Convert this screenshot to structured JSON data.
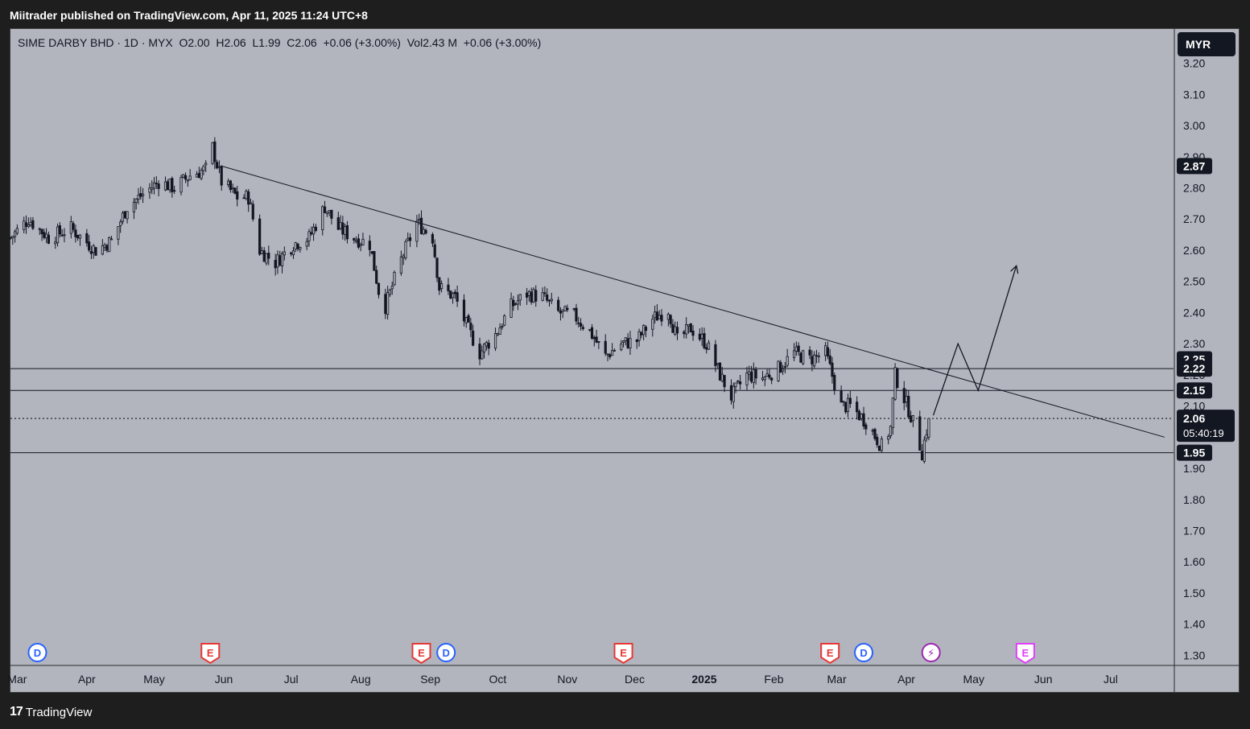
{
  "header": {
    "publisher_line": "Miitrader published on TradingView.com, Apr 11, 2025 11:24 UTC+8"
  },
  "legend": {
    "text": "SIME DARBY BHD · 1D · MYX  O2.00  H2.06  L1.99  C2.06  +0.06 (+3.00%)  Vol2.43 M  +0.06 (+3.00%)"
  },
  "currency_button": "MYR",
  "footer": {
    "logo_text": "TradingView",
    "logo_mark": "17"
  },
  "colors": {
    "chart_bg": "#b2b5be",
    "frame_bg": "#1e1e1e",
    "candle": "#131722",
    "label_bg": "#131722",
    "event_red": "#e53935",
    "event_blue": "#2962ff",
    "event_purple": "#9c27b0",
    "event_pink": "#e040fb"
  },
  "chart_data": {
    "type": "candlestick",
    "symbol": "SIME DARBY BHD",
    "interval": "1D",
    "exchange": "MYX",
    "currency": "MYR",
    "last": {
      "open": 2.0,
      "high": 2.06,
      "low": 1.99,
      "close": 2.06,
      "change": "+0.06 (+3.00%)",
      "volume": "2.43 M"
    },
    "y_ticks": [
      3.2,
      3.1,
      3.0,
      2.9,
      2.8,
      2.7,
      2.6,
      2.5,
      2.4,
      2.3,
      2.2,
      2.1,
      2.0,
      1.9,
      1.8,
      1.7,
      1.6,
      1.5,
      1.4,
      1.3
    ],
    "y_tick_labels": [
      "3.20",
      "3.10",
      "3.00",
      "2.90",
      "2.80",
      "2.70",
      "2.60",
      "2.50",
      "2.40",
      "2.30",
      "2.20",
      "2.10",
      "2.00",
      "1.90",
      "1.80",
      "1.70",
      "1.60",
      "1.50",
      "1.40",
      "1.30"
    ],
    "ylim": [
      1.27,
      3.31
    ],
    "x_labels": [
      {
        "label": "Mar",
        "date": "2024-03-01"
      },
      {
        "label": "Apr",
        "date": "2024-04-01"
      },
      {
        "label": "May",
        "date": "2024-05-01"
      },
      {
        "label": "Jun",
        "date": "2024-06-01"
      },
      {
        "label": "Jul",
        "date": "2024-07-01"
      },
      {
        "label": "Aug",
        "date": "2024-08-01"
      },
      {
        "label": "Sep",
        "date": "2024-09-01"
      },
      {
        "label": "Oct",
        "date": "2024-10-01"
      },
      {
        "label": "Nov",
        "date": "2024-11-01"
      },
      {
        "label": "Dec",
        "date": "2024-12-01"
      },
      {
        "label": "2025",
        "date": "2025-01-01",
        "bold": true
      },
      {
        "label": "Feb",
        "date": "2025-02-01"
      },
      {
        "label": "Mar",
        "date": "2025-03-01"
      },
      {
        "label": "Apr",
        "date": "2025-04-01"
      },
      {
        "label": "May",
        "date": "2025-05-01"
      },
      {
        "label": "Jun",
        "date": "2025-06-01"
      },
      {
        "label": "Jul",
        "date": "2025-07-01"
      }
    ],
    "xlim": [
      "2024-02-27",
      "2025-07-29"
    ],
    "price_series": [
      [
        "2024-02-27",
        2.64
      ],
      [
        "2024-03-06",
        2.7
      ],
      [
        "2024-03-15",
        2.64
      ],
      [
        "2024-03-25",
        2.67
      ],
      [
        "2024-04-05",
        2.6
      ],
      [
        "2024-04-12",
        2.63
      ],
      [
        "2024-04-19",
        2.74
      ],
      [
        "2024-04-26",
        2.78
      ],
      [
        "2024-05-03",
        2.82
      ],
      [
        "2024-05-10",
        2.8
      ],
      [
        "2024-05-17",
        2.84
      ],
      [
        "2024-05-24",
        2.86
      ],
      [
        "2024-05-27",
        2.93
      ],
      [
        "2024-05-31",
        2.82
      ],
      [
        "2024-06-07",
        2.77
      ],
      [
        "2024-06-12",
        2.77
      ],
      [
        "2024-06-17",
        2.6
      ],
      [
        "2024-06-24",
        2.56
      ],
      [
        "2024-07-02",
        2.62
      ],
      [
        "2024-07-09",
        2.64
      ],
      [
        "2024-07-16",
        2.74
      ],
      [
        "2024-07-22",
        2.67
      ],
      [
        "2024-07-29",
        2.64
      ],
      [
        "2024-08-05",
        2.62
      ],
      [
        "2024-08-09",
        2.47
      ],
      [
        "2024-08-12",
        2.42
      ],
      [
        "2024-08-19",
        2.57
      ],
      [
        "2024-08-26",
        2.69
      ],
      [
        "2024-09-02",
        2.64
      ],
      [
        "2024-09-05",
        2.48
      ],
      [
        "2024-09-12",
        2.45
      ],
      [
        "2024-09-17",
        2.36
      ],
      [
        "2024-09-23",
        2.27
      ],
      [
        "2024-09-30",
        2.33
      ],
      [
        "2024-10-07",
        2.42
      ],
      [
        "2024-10-14",
        2.46
      ],
      [
        "2024-10-21",
        2.45
      ],
      [
        "2024-10-28",
        2.4
      ],
      [
        "2024-11-04",
        2.39
      ],
      [
        "2024-11-11",
        2.34
      ],
      [
        "2024-11-18",
        2.26
      ],
      [
        "2024-11-25",
        2.3
      ],
      [
        "2024-12-02",
        2.31
      ],
      [
        "2024-12-09",
        2.38
      ],
      [
        "2024-12-16",
        2.41
      ],
      [
        "2024-12-20",
        2.31
      ],
      [
        "2024-12-26",
        2.35
      ],
      [
        "2025-01-02",
        2.3
      ],
      [
        "2025-01-08",
        2.2
      ],
      [
        "2025-01-13",
        2.13
      ],
      [
        "2025-01-20",
        2.2
      ],
      [
        "2025-01-27",
        2.19
      ],
      [
        "2025-02-03",
        2.22
      ],
      [
        "2025-02-10",
        2.27
      ],
      [
        "2025-02-17",
        2.25
      ],
      [
        "2025-02-24",
        2.27
      ],
      [
        "2025-03-03",
        2.1
      ],
      [
        "2025-03-07",
        2.1
      ],
      [
        "2025-03-14",
        2.05
      ],
      [
        "2025-03-21",
        1.97
      ],
      [
        "2025-03-25",
        2.03
      ],
      [
        "2025-03-27",
        2.2
      ],
      [
        "2025-04-03",
        2.07
      ],
      [
        "2025-04-08",
        1.95
      ],
      [
        "2025-04-11",
        2.06
      ]
    ],
    "last_candle": {
      "date": "2025-04-11",
      "open": 2.0,
      "high": 2.06,
      "low": 1.99,
      "close": 2.06
    },
    "horizontal_lines": [
      2.22,
      2.15,
      1.95
    ],
    "current_price_line": 2.06,
    "price_labels": [
      {
        "value": 2.87,
        "text": "2.87"
      },
      {
        "value": 2.25,
        "text": "2.25"
      },
      {
        "value": 2.22,
        "text": "2.22"
      },
      {
        "value": 2.15,
        "text": "2.15"
      },
      {
        "value": 2.06,
        "text": "2.06",
        "countdown": "05:40:19"
      },
      {
        "value": 1.95,
        "text": "1.95"
      }
    ],
    "trendline": [
      [
        "2024-05-31",
        2.87
      ],
      [
        "2025-07-25",
        2.0
      ]
    ],
    "projection_path": [
      [
        "2025-04-13",
        2.07
      ],
      [
        "2025-04-24",
        2.3
      ],
      [
        "2025-05-03",
        2.15
      ],
      [
        "2025-05-20",
        2.55
      ]
    ],
    "events": [
      {
        "type": "D",
        "date": "2024-03-10",
        "color": "blue"
      },
      {
        "type": "E",
        "date": "2024-05-26",
        "color": "red"
      },
      {
        "type": "E",
        "date": "2024-08-28",
        "color": "red"
      },
      {
        "type": "D",
        "date": "2024-09-08",
        "color": "blue"
      },
      {
        "type": "E",
        "date": "2024-11-26",
        "color": "red"
      },
      {
        "type": "E",
        "date": "2025-02-26",
        "color": "red"
      },
      {
        "type": "D",
        "date": "2025-03-13",
        "color": "blue"
      },
      {
        "type": "⚡",
        "date": "2025-04-12",
        "color": "purple"
      },
      {
        "type": "E",
        "date": "2025-05-24",
        "color": "pink"
      }
    ]
  }
}
